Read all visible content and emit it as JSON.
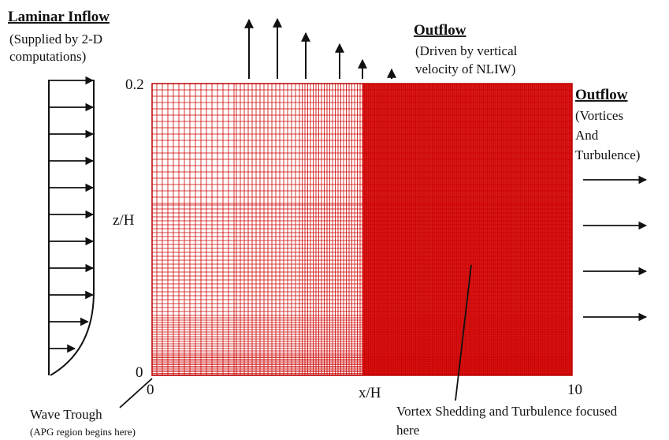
{
  "inflow": {
    "title": "Laminar Inflow",
    "lines": [
      "(Supplied by 2-D",
      "computations)"
    ],
    "arrow_count": 11
  },
  "outflow_top": {
    "title": "Outflow",
    "lines": [
      "(Driven by vertical",
      "velocity of NLIW)"
    ]
  },
  "outflow_right": {
    "title": "Outflow",
    "lines": [
      "(Vortices",
      "And",
      "Turbulence)"
    ],
    "arrow_count": 4
  },
  "axes": {
    "z_label": "z/H",
    "x_label": "x/H",
    "z_max": "0.2",
    "z_min": "0",
    "x_min": "0",
    "x_max": "10"
  },
  "wave_trough": {
    "label": "Wave Trough",
    "sublabel": "(APG region begins here)"
  },
  "vortex": {
    "lines": [
      "Vortex Shedding and Turbulence focused",
      "here"
    ]
  },
  "colors": {
    "grid": "#cc0000",
    "text": "#111111"
  }
}
